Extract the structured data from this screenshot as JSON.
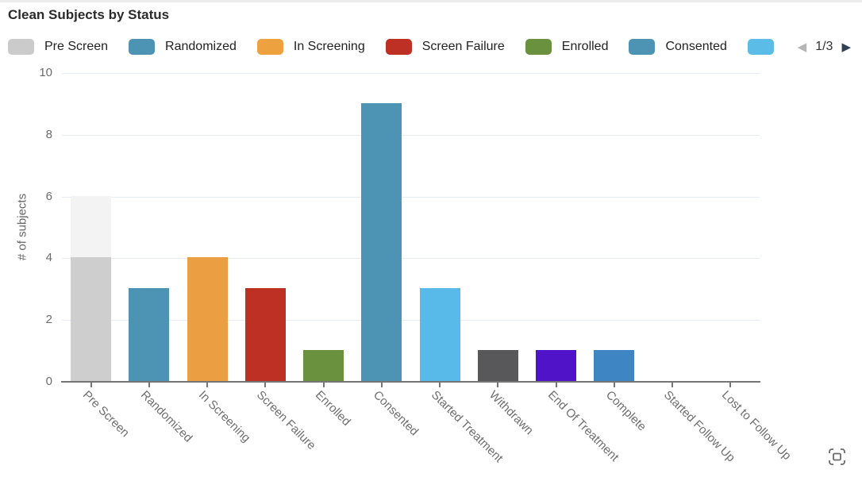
{
  "title": "Clean Subjects by Status",
  "legend": {
    "items": [
      {
        "label": "Pre Screen",
        "color": "#cbcbcb"
      },
      {
        "label": "Randomized",
        "color": "#4c93b4"
      },
      {
        "label": "In Screening",
        "color": "#eda13f"
      },
      {
        "label": "Screen Failure",
        "color": "#bf3024"
      },
      {
        "label": "Enrolled",
        "color": "#6a913d"
      },
      {
        "label": "Consented",
        "color": "#4c93b4"
      },
      {
        "label": "",
        "color": "#5cbce8"
      }
    ],
    "pagination": {
      "current": "1/3",
      "prev_icon": "◀",
      "next_icon": "▶",
      "prev_enabled": false,
      "next_enabled": true
    }
  },
  "chart_data": {
    "type": "bar",
    "title": "Clean Subjects by Status",
    "xlabel": "",
    "ylabel": "# of subjects",
    "ylim": [
      0,
      10
    ],
    "yticks": [
      0,
      2,
      4,
      6,
      8,
      10
    ],
    "grid": true,
    "legend_position": "top",
    "categories": [
      "Pre Screen",
      "Randomized",
      "In Screening",
      "Screen Failure",
      "Enrolled",
      "Consented",
      "Started Treatment",
      "Withdrawn",
      "End Of Treatment",
      "Complete",
      "Started Follow Up",
      "Lost to Follow Up"
    ],
    "values": [
      6,
      3,
      4,
      3,
      1,
      9,
      3,
      1,
      1,
      1,
      0,
      0
    ],
    "bars": [
      {
        "label": "Pre Screen",
        "value": 6,
        "color": "#cecece",
        "segments": [
          {
            "value": 4,
            "color": "#cecece"
          },
          {
            "value": 2,
            "color": "#f3f3f3"
          }
        ]
      },
      {
        "label": "Randomized",
        "value": 3,
        "color": "#4c93b4"
      },
      {
        "label": "In Screening",
        "value": 4,
        "color": "#ec9e42"
      },
      {
        "label": "Screen Failure",
        "value": 3,
        "color": "#bf3024"
      },
      {
        "label": "Enrolled",
        "value": 1,
        "color": "#6a913d"
      },
      {
        "label": "Consented",
        "value": 9,
        "color": "#4c93b4"
      },
      {
        "label": "Started Treatment",
        "value": 3,
        "color": "#58bae8"
      },
      {
        "label": "Withdrawn",
        "value": 1,
        "color": "#58585a"
      },
      {
        "label": "End Of Treatment",
        "value": 1,
        "color": "#5013c8"
      },
      {
        "label": "Complete",
        "value": 1,
        "color": "#3e86c3"
      },
      {
        "label": "Started Follow Up",
        "value": 0,
        "color": "#4c93b4"
      },
      {
        "label": "Lost to Follow Up",
        "value": 0,
        "color": "#4c93b4"
      }
    ]
  },
  "icons": {
    "fullscreen": "fullscreen-toggle"
  }
}
